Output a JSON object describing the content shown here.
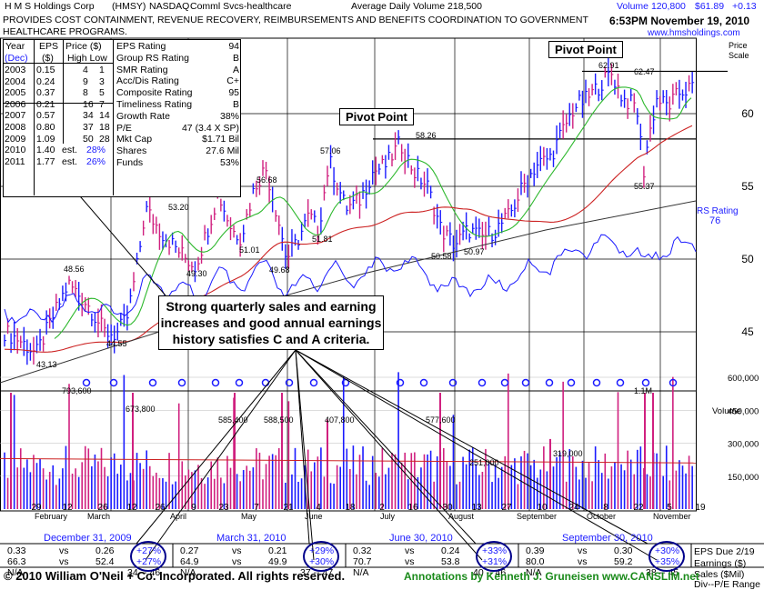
{
  "header": {
    "company": "H M S Holdings Corp",
    "ticker": "(HMSY)",
    "exchange": "NASDAQ",
    "industry": "Comml Svcs-healthcare",
    "avg_volume": "Average Daily Volume 218,500",
    "volume_today": "Volume 120,800",
    "price": "$61.89",
    "change": "+0.13",
    "description_line1": "PROVIDES COST CONTAINMENT, REVENUE RECOVERY, REIMBURSEMENTS AND BENEFITS COORDINATION TO GOVERNMENT",
    "description_line2": "HEALTHCARE PROGRAMS.",
    "timestamp": "6:53PM November 19, 2010",
    "website": "www.hmsholdings.com",
    "price_scale_label": "Price",
    "scale_label": "Scale"
  },
  "fundamentals": {
    "col_year": "Year",
    "col_year_sub": "(Dec)",
    "col_eps": "EPS",
    "col_eps_sub": "($)",
    "col_price": "Price ($)",
    "col_price_sub": "High Low",
    "rows": [
      {
        "year": "2003",
        "eps": "0.15",
        "high": "4",
        "low": "1"
      },
      {
        "year": "2004",
        "eps": "0.24",
        "high": "9",
        "low": "3"
      },
      {
        "year": "2005",
        "eps": "0.37",
        "high": "8",
        "low": "5"
      },
      {
        "year": "2006",
        "eps": "0.21",
        "high": "16",
        "low": "7"
      },
      {
        "year": "2007",
        "eps": "0.57",
        "high": "34",
        "low": "14"
      },
      {
        "year": "2008",
        "eps": "0.80",
        "high": "37",
        "low": "18"
      },
      {
        "year": "2009",
        "eps": "1.09",
        "high": "50",
        "low": "28"
      },
      {
        "year": "2010",
        "eps": "1.40",
        "est": "est.",
        "growth": "28%"
      },
      {
        "year": "2011",
        "eps": "1.77",
        "est": "est.",
        "growth": "26%"
      }
    ],
    "ratings": [
      {
        "label": "EPS Rating",
        "value": "94"
      },
      {
        "label": "Group RS Rating",
        "value": "B"
      },
      {
        "label": "SMR Rating",
        "value": "A"
      },
      {
        "label": "Acc/Dis Rating",
        "value": "C+"
      },
      {
        "label": "Composite Rating",
        "value": "95"
      },
      {
        "label": "Timeliness Rating",
        "value": "B"
      },
      {
        "label": "Growth Rate",
        "value": "38%"
      },
      {
        "label": "P/E",
        "value": "47 (3.4 X SP)"
      },
      {
        "label": "Mkt Cap",
        "value": "$1.71 Bil"
      },
      {
        "label": "Shares",
        "value": "27.6 Mil"
      },
      {
        "label": "Funds",
        "value": "53%"
      }
    ]
  },
  "annotations": {
    "pivot1": "Pivot Point",
    "pivot2": "Pivot Point",
    "callout_line1": "Strong quarterly sales and earning",
    "callout_line2": "increases and good annual earnings",
    "callout_line3": "history satisfies C and A criteria."
  },
  "quarters": [
    {
      "title": "December 31, 2009",
      "eps_cur": "0.33",
      "eps_prev": "0.26",
      "eps_pct": "+27%",
      "sales_cur": "66.3",
      "sales_prev": "52.4",
      "sales_pct": "+27%",
      "c3": "N/A",
      "range": "34 -- 46"
    },
    {
      "title": "March 31, 2010",
      "eps_cur": "0.27",
      "eps_prev": "0.21",
      "eps_pct": "+29%",
      "sales_cur": "64.9",
      "sales_prev": "49.9",
      "sales_pct": "+30%",
      "c3": "N/A",
      "range": "37 -- 47"
    },
    {
      "title": "June 30, 2010",
      "eps_cur": "0.32",
      "eps_prev": "0.24",
      "eps_pct": "+33%",
      "sales_cur": "70.7",
      "sales_prev": "53.8",
      "sales_pct": "+31%",
      "c3": "N/A",
      "range": "40 -- 46"
    },
    {
      "title": "September 30, 2010",
      "eps_cur": "0.39",
      "eps_prev": "0.30",
      "eps_pct": "+30%",
      "sales_cur": "80.0",
      "sales_prev": "59.2",
      "sales_pct": "+35%",
      "c3": "N/A",
      "range": "38 -- 45"
    }
  ],
  "vs": "vs",
  "right_legend": {
    "eps_due": "EPS Due 2/19",
    "earnings": "Earnings ($)",
    "sales": "Sales ($Mil)",
    "div_pe": "Div--P/E Range"
  },
  "footer": {
    "copyright": "© 2010 William O'Neil + Co. Incorporated. All rights reserved.",
    "annotations_by": "Annotations by Kenneth J. Gruneisen www.CANSLIM.net"
  },
  "chart_data": {
    "type": "bar",
    "price_ticks": [
      "60",
      "55",
      "50",
      "45"
    ],
    "volume_label": "Volume",
    "volume_ticks": [
      "600,000",
      "450,000",
      "300,000",
      "150,000"
    ],
    "rs_label": "RS Rating",
    "rs_value": "76",
    "price_labels": [
      "43.13",
      "48.56",
      "44.55",
      "54.07",
      "53.20",
      "49.30",
      "55.30",
      "51.01",
      "56.68",
      "49.68",
      "51.81",
      "57.06",
      "58.26",
      "50.58",
      "50.97",
      "62.91",
      "62.47",
      "55.37"
    ],
    "volume_labels": [
      "793,600",
      "673,800",
      "585,400",
      "588,500",
      "407,800",
      "577,600",
      "251,000",
      "319,000",
      "1.1M"
    ],
    "x_date_labels": [
      "29",
      "12",
      "26",
      "12",
      "26",
      "9",
      "23",
      "7",
      "21",
      "4",
      "18",
      "2",
      "16",
      "30",
      "13",
      "27",
      "10",
      "24",
      "8",
      "22",
      "5",
      "19"
    ],
    "x_month_labels": [
      "February",
      "March",
      "April",
      "May",
      "June",
      "July",
      "August",
      "September",
      "October",
      "November"
    ]
  }
}
